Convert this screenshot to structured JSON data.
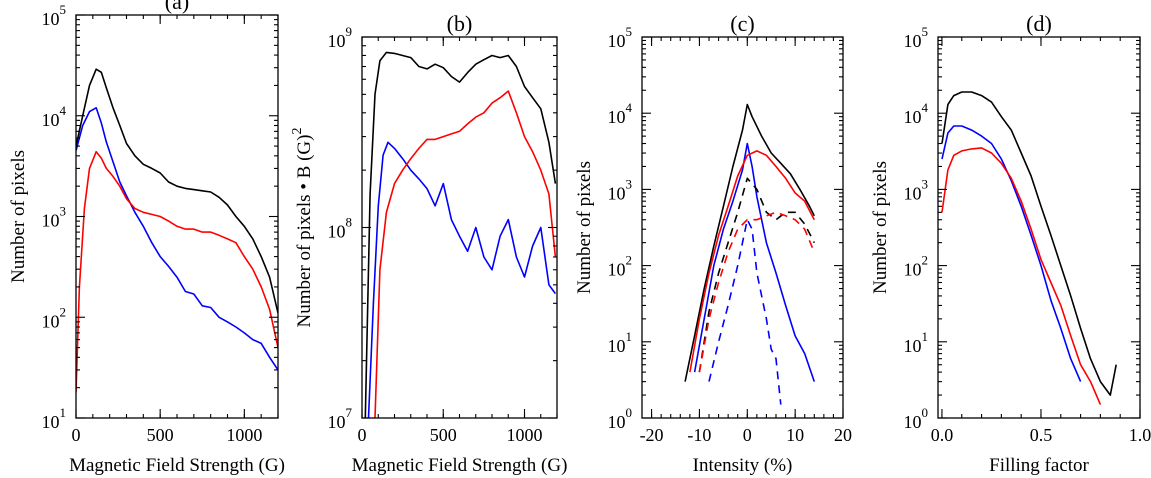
{
  "chart_data": [
    {
      "type": "line",
      "panel_label": "(a)",
      "xlabel": "Magnetic Field Strength (G)",
      "ylabel": "Number of pixels",
      "xlim": [
        0,
        1200
      ],
      "ylim": [
        10,
        100000
      ],
      "yscale": "log",
      "xticks": [
        0,
        500,
        1000
      ],
      "xtick_labels": [
        "0",
        "500",
        "1000"
      ],
      "yticks": [
        10,
        100,
        1000,
        10000,
        100000
      ],
      "ytick_labels": [
        {
          "base": "10",
          "exp": "1"
        },
        {
          "base": "10",
          "exp": "2"
        },
        {
          "base": "10",
          "exp": "3"
        },
        {
          "base": "10",
          "exp": "4"
        },
        {
          "base": "10",
          "exp": "5"
        }
      ],
      "series": [
        {
          "color": "#000000",
          "dash": "solid",
          "x": [
            0,
            40,
            80,
            120,
            150,
            180,
            220,
            260,
            300,
            350,
            400,
            450,
            500,
            550,
            600,
            650,
            700,
            750,
            800,
            850,
            900,
            950,
            1000,
            1050,
            1100,
            1150,
            1200
          ],
          "y": [
            5000,
            10000,
            20000,
            29000,
            27000,
            19000,
            12000,
            8000,
            5300,
            4000,
            3300,
            3000,
            2700,
            2200,
            2000,
            1900,
            1850,
            1800,
            1750,
            1550,
            1300,
            1000,
            800,
            600,
            400,
            250,
            110
          ]
        },
        {
          "color": "#0000ff",
          "dash": "solid",
          "x": [
            0,
            40,
            80,
            120,
            150,
            180,
            220,
            260,
            300,
            350,
            400,
            450,
            500,
            550,
            600,
            650,
            700,
            750,
            800,
            850,
            900,
            950,
            1000,
            1050,
            1100,
            1150,
            1200
          ],
          "y": [
            4500,
            8000,
            11000,
            12000,
            8500,
            5500,
            3500,
            2200,
            1600,
            1100,
            800,
            550,
            400,
            320,
            250,
            180,
            170,
            130,
            125,
            100,
            90,
            80,
            70,
            60,
            55,
            40,
            30
          ]
        },
        {
          "color": "#ff0000",
          "dash": "solid",
          "x": [
            0,
            20,
            50,
            80,
            120,
            150,
            180,
            220,
            260,
            300,
            350,
            400,
            450,
            500,
            550,
            600,
            650,
            700,
            750,
            800,
            850,
            900,
            950,
            1000,
            1050,
            1100,
            1150,
            1200
          ],
          "y": [
            18,
            200,
            1200,
            3000,
            4400,
            3800,
            3000,
            2500,
            2000,
            1500,
            1200,
            1100,
            1050,
            1000,
            900,
            800,
            750,
            750,
            700,
            700,
            650,
            600,
            550,
            400,
            300,
            200,
            120,
            50
          ]
        }
      ]
    },
    {
      "type": "line",
      "panel_label": "(b)",
      "xlabel": "Magnetic Field Strength (G)",
      "ylabel": "Number of pixels • B (G)",
      "ylabel_sup": "2",
      "xlim": [
        0,
        1200
      ],
      "ylim": [
        10000000,
        1000000000
      ],
      "yscale": "log",
      "xticks": [
        0,
        500,
        1000
      ],
      "xtick_labels": [
        "0",
        "500",
        "1000"
      ],
      "yticks": [
        10000000,
        100000000,
        1000000000
      ],
      "ytick_labels": [
        {
          "base": "10",
          "exp": "7"
        },
        {
          "base": "10",
          "exp": "8"
        },
        {
          "base": "10",
          "exp": "9"
        }
      ],
      "series": [
        {
          "color": "#000000",
          "dash": "solid",
          "x": [
            20,
            50,
            80,
            110,
            150,
            200,
            250,
            300,
            350,
            400,
            450,
            500,
            550,
            600,
            650,
            700,
            750,
            800,
            850,
            900,
            950,
            1000,
            1050,
            1100,
            1150,
            1190
          ],
          "y": [
            10000000,
            150000000,
            500000000,
            750000000,
            830000000,
            820000000,
            800000000,
            780000000,
            700000000,
            680000000,
            720000000,
            690000000,
            620000000,
            580000000,
            650000000,
            720000000,
            760000000,
            800000000,
            780000000,
            800000000,
            700000000,
            550000000,
            480000000,
            420000000,
            280000000,
            170000000
          ]
        },
        {
          "color": "#0000ff",
          "dash": "solid",
          "x": [
            40,
            70,
            100,
            130,
            160,
            200,
            250,
            300,
            350,
            400,
            450,
            500,
            550,
            600,
            650,
            700,
            750,
            800,
            850,
            900,
            950,
            1000,
            1050,
            1100,
            1150,
            1190
          ],
          "y": [
            10000000,
            40000000,
            130000000,
            240000000,
            280000000,
            260000000,
            230000000,
            200000000,
            180000000,
            160000000,
            130000000,
            170000000,
            110000000,
            90000000,
            75000000,
            100000000,
            70000000,
            60000000,
            90000000,
            110000000,
            70000000,
            55000000,
            80000000,
            100000000,
            50000000,
            45000000
          ]
        },
        {
          "color": "#ff0000",
          "dash": "solid",
          "x": [
            80,
            110,
            150,
            200,
            250,
            300,
            350,
            400,
            450,
            500,
            550,
            600,
            650,
            700,
            750,
            800,
            850,
            900,
            950,
            1000,
            1050,
            1100,
            1150,
            1190
          ],
          "y": [
            10000000,
            60000000,
            120000000,
            170000000,
            200000000,
            230000000,
            260000000,
            290000000,
            290000000,
            300000000,
            310000000,
            320000000,
            350000000,
            380000000,
            400000000,
            450000000,
            480000000,
            520000000,
            400000000,
            300000000,
            250000000,
            200000000,
            150000000,
            70000000
          ]
        }
      ]
    },
    {
      "type": "line",
      "panel_label": "(c)",
      "xlabel": "Intensity (%)",
      "ylabel": "Number of pixels",
      "xlim": [
        -22,
        20
      ],
      "ylim": [
        1,
        100000
      ],
      "yscale": "log",
      "xticks": [
        -20,
        -10,
        0,
        10,
        20
      ],
      "xtick_labels": [
        "-20",
        "-10",
        "0",
        "10",
        "20"
      ],
      "yticks": [
        1,
        10,
        100,
        1000,
        10000,
        100000
      ],
      "ytick_labels": [
        {
          "base": "10",
          "exp": "0"
        },
        {
          "base": "10",
          "exp": "1"
        },
        {
          "base": "10",
          "exp": "2"
        },
        {
          "base": "10",
          "exp": "3"
        },
        {
          "base": "10",
          "exp": "4"
        },
        {
          "base": "10",
          "exp": "5"
        }
      ],
      "series": [
        {
          "color": "#000000",
          "dash": "solid",
          "x": [
            -13,
            -11,
            -9,
            -7,
            -5,
            -3,
            -1,
            0,
            1,
            3,
            5,
            7,
            9,
            11,
            13,
            14
          ],
          "y": [
            3,
            12,
            50,
            180,
            600,
            2000,
            6000,
            13000,
            9000,
            5000,
            3000,
            2200,
            1600,
            1000,
            600,
            450
          ]
        },
        {
          "color": "#0000ff",
          "dash": "solid",
          "x": [
            -11,
            -9,
            -7,
            -5,
            -3,
            -1,
            0,
            1,
            2,
            4,
            6,
            8,
            10,
            12,
            14
          ],
          "y": [
            4,
            20,
            100,
            300,
            700,
            1800,
            4000,
            2000,
            800,
            200,
            80,
            30,
            12,
            7,
            3
          ]
        },
        {
          "color": "#ff0000",
          "dash": "solid",
          "x": [
            -12,
            -10,
            -8,
            -6,
            -4,
            -2,
            0,
            2,
            4,
            6,
            8,
            10,
            12,
            14
          ],
          "y": [
            4,
            20,
            80,
            250,
            600,
            1500,
            2800,
            3200,
            2800,
            2000,
            1400,
            900,
            700,
            400
          ]
        },
        {
          "color": "#000000",
          "dash": "dashed",
          "x": [
            -10,
            -8,
            -6,
            -4,
            -2,
            0,
            2,
            4,
            6,
            8,
            10,
            12,
            14
          ],
          "y": [
            4,
            25,
            80,
            200,
            500,
            1400,
            1000,
            500,
            400,
            500,
            500,
            350,
            200
          ]
        },
        {
          "color": "#0000ff",
          "dash": "dashed",
          "x": [
            -8,
            -6,
            -4,
            -2,
            0,
            1,
            2,
            4,
            5,
            6,
            7
          ],
          "y": [
            3,
            10,
            30,
            100,
            400,
            300,
            80,
            20,
            8,
            6,
            1.5
          ]
        },
        {
          "color": "#ff0000",
          "dash": "dashed",
          "x": [
            -10,
            -8,
            -6,
            -4,
            -2,
            0,
            2,
            4,
            6,
            8,
            10,
            12,
            14
          ],
          "y": [
            4,
            20,
            60,
            150,
            300,
            400,
            400,
            450,
            500,
            450,
            400,
            300,
            150
          ]
        }
      ]
    },
    {
      "type": "line",
      "panel_label": "(d)",
      "xlabel": "Filling factor",
      "ylabel": "Number of pixels",
      "xlim": [
        -0.02,
        1.0
      ],
      "ylim": [
        1,
        100000
      ],
      "yscale": "log",
      "xticks": [
        0,
        0.5,
        1.0
      ],
      "xtick_labels": [
        "0.0",
        "0.5",
        "1.0"
      ],
      "yticks": [
        1,
        10,
        100,
        1000,
        10000,
        100000
      ],
      "ytick_labels": [
        {
          "base": "10",
          "exp": "0"
        },
        {
          "base": "10",
          "exp": "1"
        },
        {
          "base": "10",
          "exp": "2"
        },
        {
          "base": "10",
          "exp": "3"
        },
        {
          "base": "10",
          "exp": "4"
        },
        {
          "base": "10",
          "exp": "5"
        }
      ],
      "series": [
        {
          "color": "#000000",
          "dash": "solid",
          "x": [
            0,
            0.03,
            0.06,
            0.1,
            0.15,
            0.2,
            0.25,
            0.3,
            0.35,
            0.4,
            0.45,
            0.5,
            0.55,
            0.6,
            0.65,
            0.7,
            0.75,
            0.8,
            0.85,
            0.88
          ],
          "y": [
            4000,
            13000,
            17000,
            19000,
            19000,
            17000,
            14000,
            9000,
            6000,
            3000,
            1500,
            600,
            250,
            100,
            40,
            15,
            6,
            3,
            2,
            5
          ]
        },
        {
          "color": "#0000ff",
          "dash": "solid",
          "x": [
            0,
            0.03,
            0.06,
            0.1,
            0.15,
            0.2,
            0.25,
            0.3,
            0.35,
            0.4,
            0.45,
            0.5,
            0.55,
            0.6,
            0.65,
            0.7
          ],
          "y": [
            2500,
            5500,
            6800,
            6800,
            6000,
            5000,
            4000,
            2500,
            1300,
            600,
            250,
            100,
            35,
            15,
            6,
            3
          ]
        },
        {
          "color": "#ff0000",
          "dash": "solid",
          "x": [
            0,
            0.03,
            0.06,
            0.1,
            0.15,
            0.2,
            0.25,
            0.3,
            0.35,
            0.4,
            0.45,
            0.5,
            0.55,
            0.6,
            0.65,
            0.7,
            0.75,
            0.8
          ],
          "y": [
            500,
            1800,
            2800,
            3200,
            3400,
            3500,
            3000,
            2200,
            1400,
            700,
            300,
            120,
            60,
            30,
            12,
            5,
            3,
            1.5
          ]
        }
      ]
    }
  ]
}
